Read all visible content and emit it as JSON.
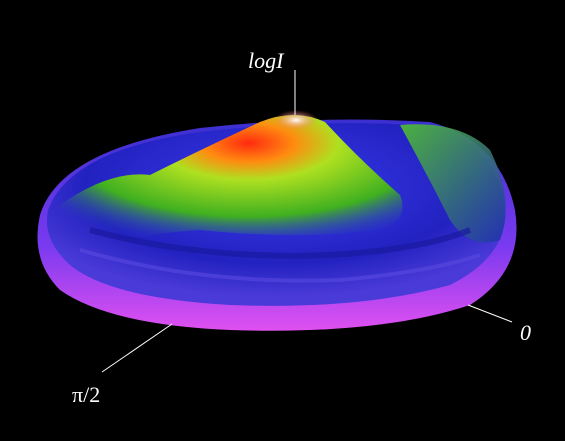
{
  "axes": {
    "vertical_label": "logI",
    "radial_label_right": "0",
    "radial_label_left": "π/2"
  }
}
